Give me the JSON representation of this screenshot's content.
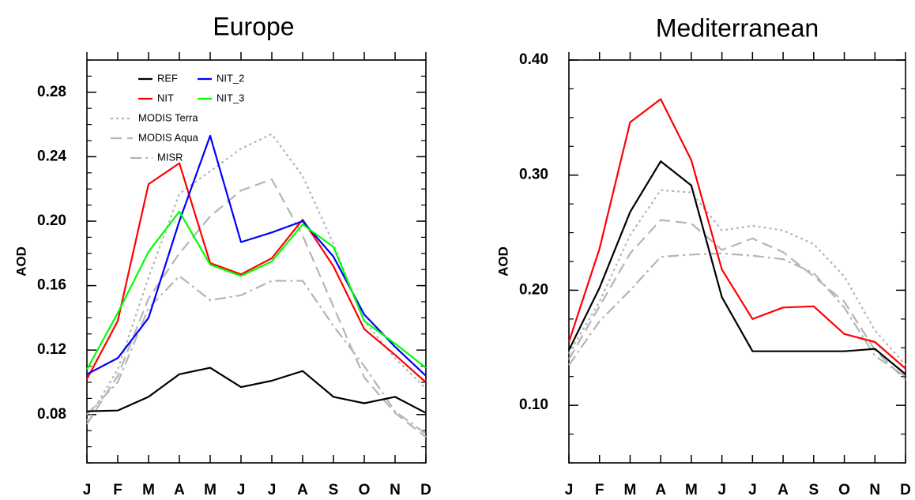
{
  "chart_data": [
    {
      "type": "line",
      "title": "Europe",
      "xlabel": "",
      "ylabel": "AOD",
      "categories": [
        "J",
        "F",
        "M",
        "A",
        "M",
        "J",
        "J",
        "A",
        "S",
        "O",
        "N",
        "D"
      ],
      "ylim": [
        0.05,
        0.3
      ],
      "yticks": [
        0.08,
        0.12,
        0.16,
        0.2,
        0.24,
        0.28
      ],
      "ytick_labels": [
        "0.08",
        "0.12",
        "0.16",
        "0.20",
        "0.24",
        "0.28"
      ],
      "grid": false,
      "legend": "top-left",
      "series": [
        {
          "name": "REF",
          "color": "#000000",
          "dash": "solid",
          "values": [
            0.082,
            0.0825,
            0.091,
            0.105,
            0.109,
            0.097,
            0.101,
            0.107,
            0.091,
            0.087,
            0.091,
            0.081
          ]
        },
        {
          "name": "NIT",
          "color": "#ff0000",
          "dash": "solid",
          "values": [
            0.102,
            0.138,
            0.223,
            0.236,
            0.174,
            0.167,
            0.177,
            0.201,
            0.172,
            0.133,
            0.117,
            0.1
          ]
        },
        {
          "name": "NIT_2",
          "color": "#0000ff",
          "dash": "solid",
          "values": [
            0.105,
            0.115,
            0.14,
            0.2,
            0.253,
            0.187,
            0.193,
            0.2,
            0.178,
            0.142,
            0.122,
            0.104
          ]
        },
        {
          "name": "NIT_3",
          "color": "#00ff00",
          "dash": "solid",
          "values": [
            0.108,
            0.143,
            0.181,
            0.206,
            0.173,
            0.166,
            0.175,
            0.198,
            0.184,
            0.138,
            0.124,
            0.109
          ]
        },
        {
          "name": "MODIS Terra",
          "color": "#b5b5b5",
          "dash": "dot",
          "values": [
            0.076,
            0.108,
            0.165,
            0.217,
            0.231,
            0.245,
            0.254,
            0.228,
            0.186,
            0.138,
            0.115,
            0.096
          ]
        },
        {
          "name": "MODIS Aqua",
          "color": "#b5b5b5",
          "dash": "dash",
          "values": [
            0.074,
            0.104,
            0.152,
            0.18,
            0.203,
            0.219,
            0.226,
            0.191,
            0.147,
            0.103,
            0.081,
            0.066
          ]
        },
        {
          "name": "MISR",
          "color": "#b5b5b5",
          "dash": "dashdot",
          "values": [
            0.08,
            0.1,
            0.146,
            0.166,
            0.151,
            0.154,
            0.163,
            0.163,
            0.135,
            0.11,
            0.082,
            0.068
          ]
        }
      ]
    },
    {
      "type": "line",
      "title": "Mediterranean",
      "xlabel": "",
      "ylabel": "AOD",
      "categories": [
        "J",
        "F",
        "M",
        "A",
        "M",
        "J",
        "J",
        "A",
        "S",
        "O",
        "N",
        "D"
      ],
      "ylim": [
        0.05,
        0.4
      ],
      "yticks": [
        0.1,
        0.2,
        0.3,
        0.4
      ],
      "ytick_labels": [
        "0.10",
        "0.20",
        "0.30",
        "0.40"
      ],
      "grid": false,
      "legend": "",
      "series": [
        {
          "name": "REF",
          "color": "#000000",
          "dash": "solid",
          "values": [
            0.148,
            0.202,
            0.268,
            0.312,
            0.291,
            0.194,
            0.147,
            0.147,
            0.147,
            0.147,
            0.149,
            0.127
          ]
        },
        {
          "name": "NIT",
          "color": "#ff0000",
          "dash": "solid",
          "values": [
            0.155,
            0.236,
            0.346,
            0.366,
            0.313,
            0.218,
            0.175,
            0.185,
            0.186,
            0.162,
            0.155,
            0.132
          ]
        },
        {
          "name": "MODIS Terra",
          "color": "#b5b5b5",
          "dash": "dot",
          "values": [
            0.145,
            0.19,
            0.248,
            0.287,
            0.285,
            0.252,
            0.256,
            0.252,
            0.24,
            0.212,
            0.165,
            0.135
          ]
        },
        {
          "name": "MODIS Aqua",
          "color": "#b5b5b5",
          "dash": "dash",
          "values": [
            0.14,
            0.186,
            0.232,
            0.261,
            0.258,
            0.235,
            0.245,
            0.233,
            0.212,
            0.19,
            0.148,
            0.122
          ]
        },
        {
          "name": "MISR",
          "color": "#b5b5b5",
          "dash": "dashdot",
          "values": [
            0.135,
            0.173,
            0.2,
            0.229,
            0.231,
            0.232,
            0.23,
            0.227,
            0.215,
            0.185,
            0.143,
            0.125
          ]
        }
      ]
    }
  ]
}
